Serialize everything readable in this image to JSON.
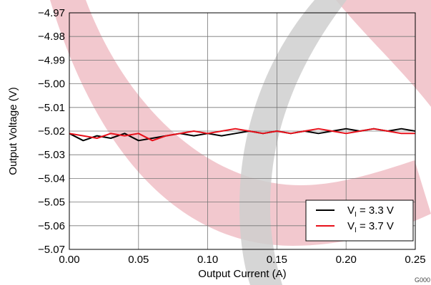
{
  "chart_data": {
    "type": "line",
    "title": "",
    "xlabel": "Output Current (A)",
    "ylabel": "Output Voltage (V)",
    "xlim": [
      0,
      0.25
    ],
    "ylim": [
      -5.07,
      -4.97
    ],
    "x_ticks": [
      0,
      0.05,
      0.1,
      0.15,
      0.2,
      0.25
    ],
    "x_tick_labels": [
      "0.00",
      "0.05",
      "0.10",
      "0.15",
      "0.20",
      "0.25"
    ],
    "y_ticks": [
      -4.97,
      -4.98,
      -4.99,
      -5.0,
      -5.01,
      -5.02,
      -5.03,
      -5.04,
      -5.05,
      -5.06,
      -5.07
    ],
    "y_tick_labels": [
      "−4.97",
      "−4.98",
      "−4.99",
      "−5.00",
      "−5.01",
      "−5.02",
      "−5.03",
      "−5.04",
      "−5.05",
      "−5.06",
      "−5.07"
    ],
    "grid": true,
    "legend_position": "bottom-right",
    "series": [
      {
        "name": "V_I = 3.3 V",
        "label_main": "V",
        "label_sub": "I",
        "label_rest": " = 3.3 V",
        "color": "#000000",
        "x": [
          0,
          0.01,
          0.02,
          0.03,
          0.04,
          0.05,
          0.06,
          0.07,
          0.08,
          0.09,
          0.1,
          0.11,
          0.12,
          0.13,
          0.14,
          0.15,
          0.16,
          0.17,
          0.18,
          0.19,
          0.2,
          0.21,
          0.22,
          0.23,
          0.24,
          0.25
        ],
        "y": [
          -5.021,
          -5.024,
          -5.022,
          -5.023,
          -5.021,
          -5.024,
          -5.023,
          -5.022,
          -5.021,
          -5.022,
          -5.021,
          -5.022,
          -5.021,
          -5.02,
          -5.021,
          -5.02,
          -5.021,
          -5.02,
          -5.021,
          -5.02,
          -5.019,
          -5.02,
          -5.019,
          -5.02,
          -5.019,
          -5.02
        ]
      },
      {
        "name": "V_I = 3.7 V",
        "label_main": "V",
        "label_sub": "I",
        "label_rest": " = 3.7 V",
        "color": "#e8101a",
        "x": [
          0,
          0.01,
          0.02,
          0.03,
          0.04,
          0.05,
          0.06,
          0.07,
          0.08,
          0.09,
          0.1,
          0.11,
          0.12,
          0.13,
          0.14,
          0.15,
          0.16,
          0.17,
          0.18,
          0.19,
          0.2,
          0.21,
          0.22,
          0.23,
          0.24,
          0.25
        ],
        "y": [
          -5.021,
          -5.022,
          -5.023,
          -5.021,
          -5.022,
          -5.021,
          -5.024,
          -5.022,
          -5.021,
          -5.02,
          -5.021,
          -5.02,
          -5.019,
          -5.02,
          -5.021,
          -5.02,
          -5.021,
          -5.02,
          -5.019,
          -5.02,
          -5.021,
          -5.02,
          -5.019,
          -5.02,
          -5.021,
          -5.021
        ]
      }
    ]
  },
  "graph_code": "G000"
}
